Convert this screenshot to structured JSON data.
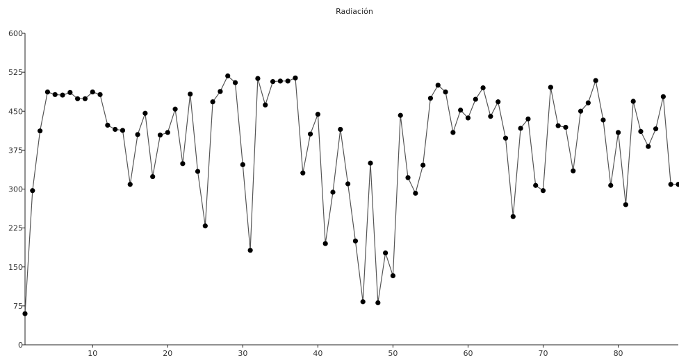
{
  "chart_data": {
    "type": "line",
    "title": "Radiación",
    "xlabel": "",
    "ylabel": "",
    "xlim": [
      1,
      88
    ],
    "ylim": [
      0,
      600
    ],
    "xticks": [
      10,
      20,
      30,
      40,
      50,
      60,
      70,
      80
    ],
    "yticks": [
      0,
      75,
      150,
      225,
      300,
      375,
      450,
      525,
      600
    ],
    "grid": false,
    "series": [
      {
        "x": [
          1,
          2,
          3,
          4,
          5,
          6,
          7,
          8,
          9,
          10,
          11,
          12,
          13,
          14,
          15,
          16,
          17,
          18,
          19,
          20,
          21,
          22,
          23,
          24,
          25,
          26,
          27,
          28,
          29,
          30,
          31,
          32,
          33,
          34,
          35,
          36,
          37,
          38,
          39,
          40,
          41,
          42,
          43,
          44,
          45,
          46,
          47,
          48,
          49,
          50,
          51,
          52,
          53,
          54,
          55,
          56,
          57,
          58,
          59,
          60,
          61,
          62,
          63,
          64,
          65,
          66,
          67,
          68,
          69,
          70,
          71,
          72,
          73,
          74,
          75,
          76,
          77,
          78,
          79,
          80,
          81,
          82,
          83,
          84,
          85,
          86,
          87,
          88
        ],
        "values": [
          60,
          297,
          412,
          487,
          482,
          481,
          486,
          474,
          474,
          487,
          482,
          423,
          415,
          413,
          309,
          405,
          446,
          324,
          404,
          409,
          454,
          349,
          483,
          334,
          229,
          468,
          488,
          518,
          505,
          347,
          182,
          513,
          462,
          507,
          508,
          508,
          514,
          331,
          406,
          444,
          195,
          294,
          415,
          310,
          200,
          83,
          350,
          81,
          177,
          133,
          442,
          322,
          292,
          346,
          475,
          500,
          487,
          409,
          452,
          437,
          473,
          495,
          440,
          468,
          398,
          247,
          417,
          435,
          307,
          297,
          496,
          422,
          419,
          335,
          450,
          466,
          509,
          433,
          307,
          409,
          270,
          469,
          411,
          382,
          416,
          478,
          309,
          309
        ]
      }
    ]
  },
  "colors": {
    "line": "#555555",
    "marker": "#000000",
    "axis": "#222222"
  }
}
